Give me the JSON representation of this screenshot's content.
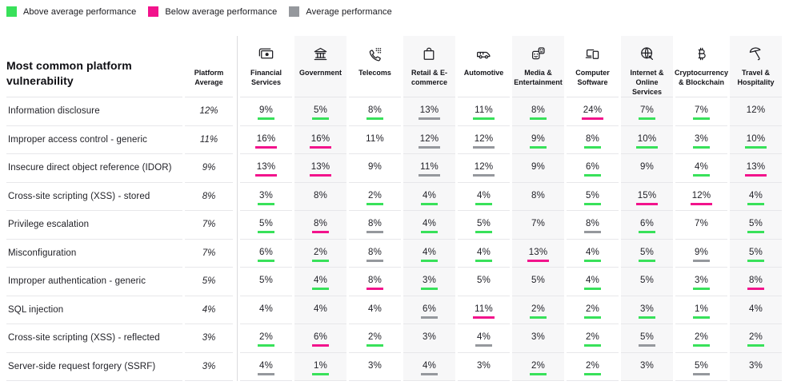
{
  "chart_data": {
    "type": "table",
    "title": "Most common platform vulnerability",
    "platform_average_header": "Platform Average",
    "legend": [
      {
        "label": "Above average performance",
        "status": "above",
        "color": "#38E15A"
      },
      {
        "label": "Below average performance",
        "status": "below",
        "color": "#F2138C"
      },
      {
        "label": "Average performance",
        "status": "average",
        "color": "#95989D"
      }
    ],
    "status_colors": {
      "above": "#38E15A",
      "below": "#F2138C",
      "average": "#95989D",
      "none": "transparent"
    },
    "columns": [
      {
        "label": "Financial Services",
        "icon": "banknote-icon",
        "shaded": false
      },
      {
        "label": "Government",
        "icon": "government-building-icon",
        "shaded": true
      },
      {
        "label": "Telecoms",
        "icon": "phone-keypad-icon",
        "shaded": false
      },
      {
        "label": "Retail & E-commerce",
        "icon": "shopping-bag-icon",
        "shaded": true
      },
      {
        "label": "Automotive",
        "icon": "van-icon",
        "shaded": false
      },
      {
        "label": "Media & Entertainment",
        "icon": "theater-masks-icon",
        "shaded": true
      },
      {
        "label": "Computer Software",
        "icon": "devices-icon",
        "shaded": false
      },
      {
        "label": "Internet & Online Services",
        "icon": "globe-cursor-icon",
        "shaded": true
      },
      {
        "label": "Cryptocurrency & Blockchain",
        "icon": "bitcoin-icon",
        "shaded": false
      },
      {
        "label": "Travel & Hospitality",
        "icon": "umbrella-icon",
        "shaded": true
      }
    ],
    "rows": [
      {
        "vulnerability": "Information disclosure",
        "platform_average": "12%",
        "cells": [
          {
            "value": "9%",
            "status": "above"
          },
          {
            "value": "5%",
            "status": "above"
          },
          {
            "value": "8%",
            "status": "above"
          },
          {
            "value": "13%",
            "status": "average"
          },
          {
            "value": "11%",
            "status": "above"
          },
          {
            "value": "8%",
            "status": "above"
          },
          {
            "value": "24%",
            "status": "below"
          },
          {
            "value": "7%",
            "status": "above"
          },
          {
            "value": "7%",
            "status": "above"
          },
          {
            "value": "12%",
            "status": "none"
          }
        ]
      },
      {
        "vulnerability": "Improper access control - generic",
        "platform_average": "11%",
        "cells": [
          {
            "value": "16%",
            "status": "below"
          },
          {
            "value": "16%",
            "status": "below"
          },
          {
            "value": "11%",
            "status": "none"
          },
          {
            "value": "12%",
            "status": "average"
          },
          {
            "value": "12%",
            "status": "average"
          },
          {
            "value": "9%",
            "status": "above"
          },
          {
            "value": "8%",
            "status": "above"
          },
          {
            "value": "10%",
            "status": "above"
          },
          {
            "value": "3%",
            "status": "above"
          },
          {
            "value": "10%",
            "status": "above"
          }
        ]
      },
      {
        "vulnerability": "Insecure direct object reference (IDOR)",
        "platform_average": "9%",
        "cells": [
          {
            "value": "13%",
            "status": "below"
          },
          {
            "value": "13%",
            "status": "below"
          },
          {
            "value": "9%",
            "status": "none"
          },
          {
            "value": "11%",
            "status": "average"
          },
          {
            "value": "12%",
            "status": "average"
          },
          {
            "value": "9%",
            "status": "none"
          },
          {
            "value": "6%",
            "status": "above"
          },
          {
            "value": "9%",
            "status": "none"
          },
          {
            "value": "4%",
            "status": "above"
          },
          {
            "value": "13%",
            "status": "below"
          }
        ]
      },
      {
        "vulnerability": "Cross-site scripting (XSS) - stored",
        "platform_average": "8%",
        "cells": [
          {
            "value": "3%",
            "status": "above"
          },
          {
            "value": "8%",
            "status": "none"
          },
          {
            "value": "2%",
            "status": "above"
          },
          {
            "value": "4%",
            "status": "above"
          },
          {
            "value": "4%",
            "status": "above"
          },
          {
            "value": "8%",
            "status": "none"
          },
          {
            "value": "5%",
            "status": "above"
          },
          {
            "value": "15%",
            "status": "below"
          },
          {
            "value": "12%",
            "status": "below"
          },
          {
            "value": "4%",
            "status": "above"
          }
        ]
      },
      {
        "vulnerability": "Privilege escalation",
        "platform_average": "7%",
        "cells": [
          {
            "value": "5%",
            "status": "above"
          },
          {
            "value": "8%",
            "status": "below"
          },
          {
            "value": "8%",
            "status": "average"
          },
          {
            "value": "4%",
            "status": "above"
          },
          {
            "value": "5%",
            "status": "above"
          },
          {
            "value": "7%",
            "status": "none"
          },
          {
            "value": "8%",
            "status": "average"
          },
          {
            "value": "6%",
            "status": "above"
          },
          {
            "value": "7%",
            "status": "none"
          },
          {
            "value": "5%",
            "status": "above"
          }
        ]
      },
      {
        "vulnerability": "Misconfiguration",
        "platform_average": "7%",
        "cells": [
          {
            "value": "6%",
            "status": "above"
          },
          {
            "value": "2%",
            "status": "above"
          },
          {
            "value": "8%",
            "status": "average"
          },
          {
            "value": "4%",
            "status": "above"
          },
          {
            "value": "4%",
            "status": "above"
          },
          {
            "value": "13%",
            "status": "below"
          },
          {
            "value": "4%",
            "status": "above"
          },
          {
            "value": "5%",
            "status": "above"
          },
          {
            "value": "9%",
            "status": "average"
          },
          {
            "value": "5%",
            "status": "above"
          }
        ]
      },
      {
        "vulnerability": "Improper authentication - generic",
        "platform_average": "5%",
        "cells": [
          {
            "value": "5%",
            "status": "none"
          },
          {
            "value": "4%",
            "status": "above"
          },
          {
            "value": "8%",
            "status": "below"
          },
          {
            "value": "3%",
            "status": "above"
          },
          {
            "value": "5%",
            "status": "none"
          },
          {
            "value": "5%",
            "status": "none"
          },
          {
            "value": "4%",
            "status": "above"
          },
          {
            "value": "5%",
            "status": "none"
          },
          {
            "value": "3%",
            "status": "above"
          },
          {
            "value": "8%",
            "status": "below"
          }
        ]
      },
      {
        "vulnerability": "SQL injection",
        "platform_average": "4%",
        "cells": [
          {
            "value": "4%",
            "status": "none"
          },
          {
            "value": "4%",
            "status": "none"
          },
          {
            "value": "4%",
            "status": "none"
          },
          {
            "value": "6%",
            "status": "average"
          },
          {
            "value": "11%",
            "status": "below"
          },
          {
            "value": "2%",
            "status": "above"
          },
          {
            "value": "2%",
            "status": "above"
          },
          {
            "value": "3%",
            "status": "above"
          },
          {
            "value": "1%",
            "status": "above"
          },
          {
            "value": "4%",
            "status": "none"
          }
        ]
      },
      {
        "vulnerability": "Cross-site scripting (XSS) - reflected",
        "platform_average": "3%",
        "cells": [
          {
            "value": "2%",
            "status": "above"
          },
          {
            "value": "6%",
            "status": "below"
          },
          {
            "value": "2%",
            "status": "above"
          },
          {
            "value": "3%",
            "status": "none"
          },
          {
            "value": "4%",
            "status": "average"
          },
          {
            "value": "3%",
            "status": "none"
          },
          {
            "value": "2%",
            "status": "above"
          },
          {
            "value": "5%",
            "status": "average"
          },
          {
            "value": "2%",
            "status": "above"
          },
          {
            "value": "2%",
            "status": "above"
          }
        ]
      },
      {
        "vulnerability": "Server-side request forgery (SSRF)",
        "platform_average": "3%",
        "cells": [
          {
            "value": "4%",
            "status": "average"
          },
          {
            "value": "1%",
            "status": "above"
          },
          {
            "value": "3%",
            "status": "none"
          },
          {
            "value": "4%",
            "status": "average"
          },
          {
            "value": "3%",
            "status": "none"
          },
          {
            "value": "2%",
            "status": "above"
          },
          {
            "value": "2%",
            "status": "above"
          },
          {
            "value": "3%",
            "status": "none"
          },
          {
            "value": "5%",
            "status": "average"
          },
          {
            "value": "3%",
            "status": "none"
          }
        ]
      }
    ]
  }
}
